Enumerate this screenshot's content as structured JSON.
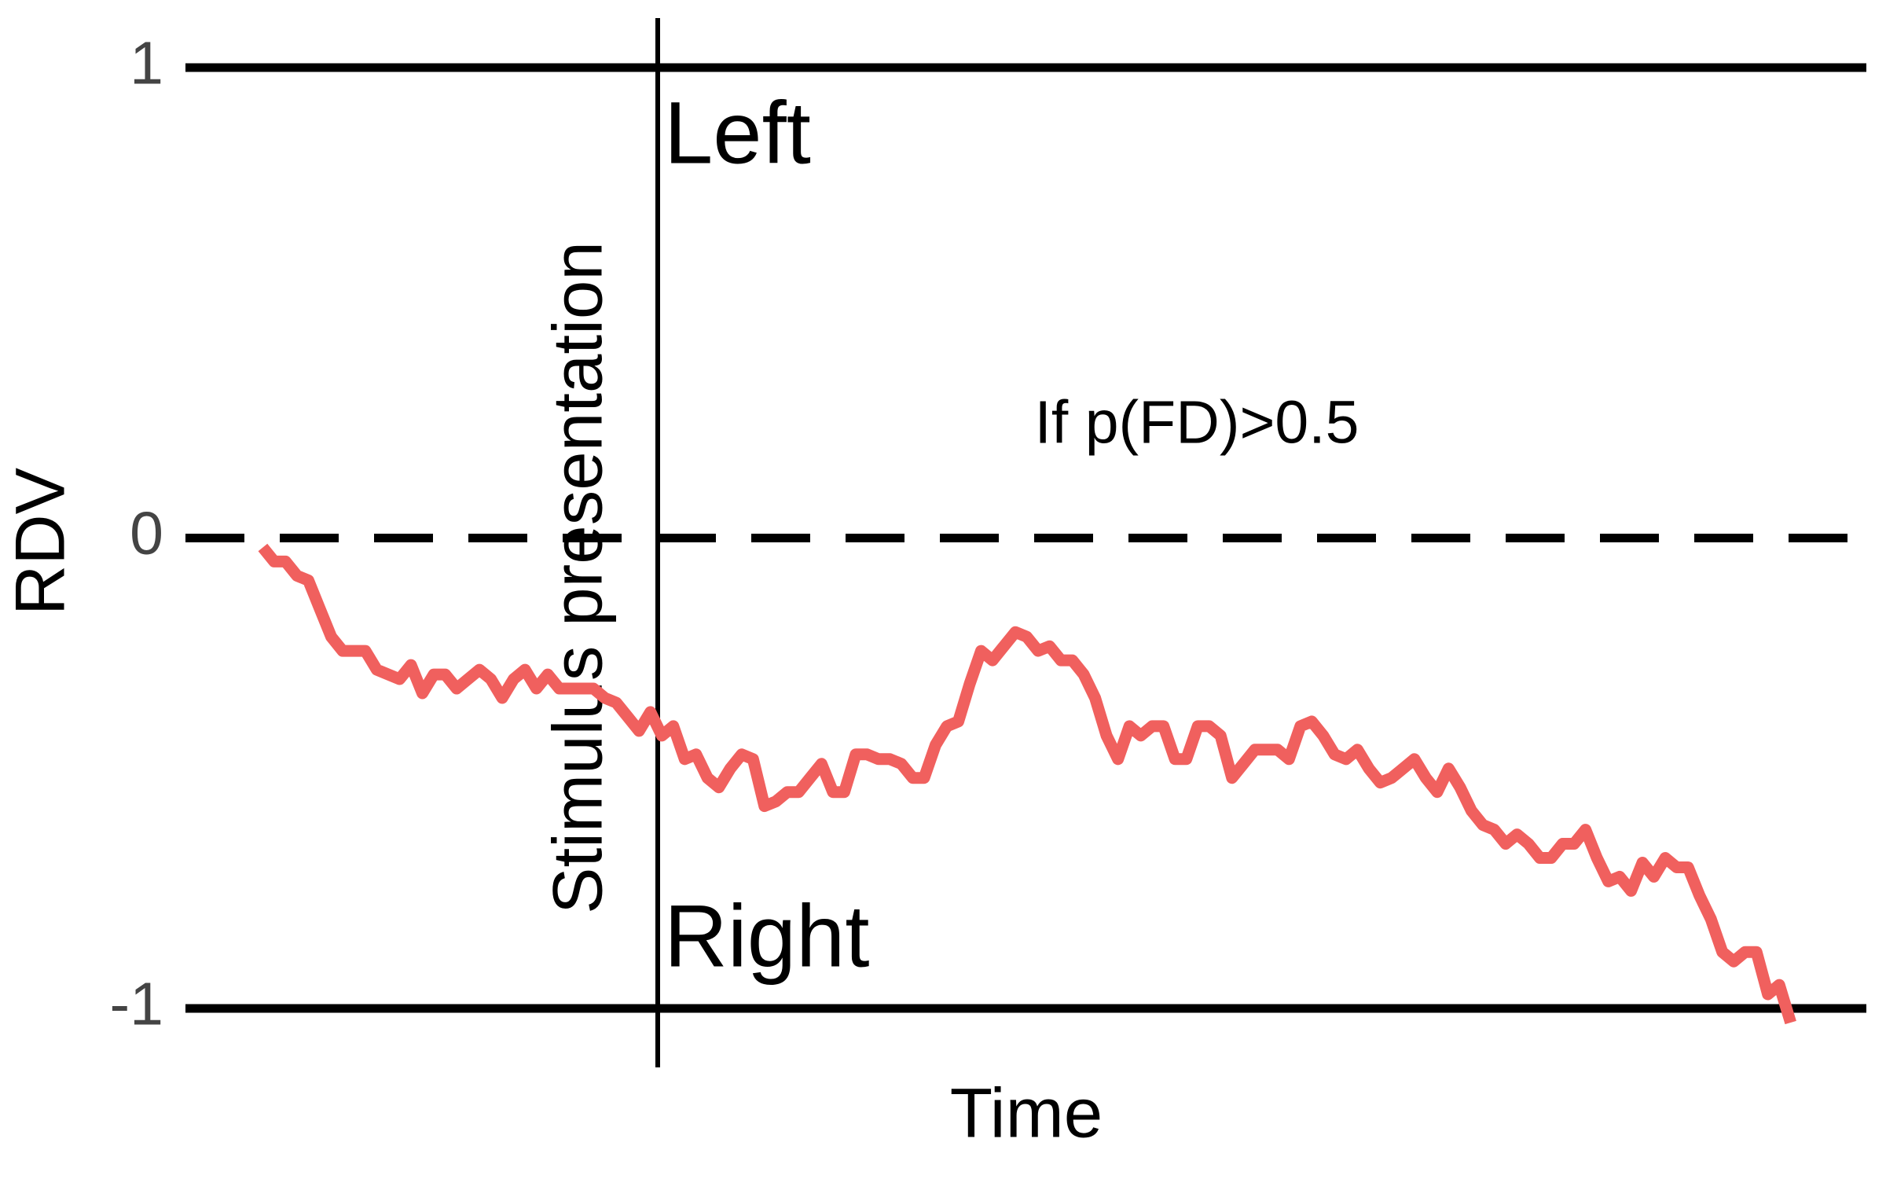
{
  "chart_data": {
    "type": "line",
    "x_label": "Time",
    "y_label": "RDV",
    "annotations": [
      "Left",
      "Right",
      "If p(FD)>0.5",
      "Stimulus presentation"
    ],
    "ylim": [
      -1,
      1
    ],
    "yticks": [
      1,
      0,
      -1
    ],
    "series": [
      {
        "color": "#f0605e",
        "values": [
          -0.02,
          -0.05,
          -0.05,
          -0.08,
          -0.09,
          -0.15,
          -0.21,
          -0.24,
          -0.24,
          -0.24,
          -0.28,
          -0.29,
          -0.3,
          -0.27,
          -0.33,
          -0.29,
          -0.29,
          -0.32,
          -0.3,
          -0.28,
          -0.3,
          -0.34,
          -0.3,
          -0.28,
          -0.32,
          -0.29,
          -0.32,
          -0.32,
          -0.32,
          -0.32,
          -0.34,
          -0.35,
          -0.38,
          -0.41,
          -0.37,
          -0.42,
          -0.4,
          -0.47,
          -0.46,
          -0.51,
          -0.53,
          -0.49,
          -0.46,
          -0.47,
          -0.57,
          -0.56,
          -0.54,
          -0.54,
          -0.51,
          -0.48,
          -0.54,
          -0.54,
          -0.46,
          -0.46,
          -0.47,
          -0.47,
          -0.48,
          -0.51,
          -0.51,
          -0.44,
          -0.4,
          -0.39,
          -0.31,
          -0.24,
          -0.26,
          -0.23,
          -0.2,
          -0.21,
          -0.24,
          -0.23,
          -0.26,
          -0.26,
          -0.29,
          -0.34,
          -0.42,
          -0.47,
          -0.4,
          -0.42,
          -0.4,
          -0.4,
          -0.47,
          -0.47,
          -0.4,
          -0.4,
          -0.42,
          -0.51,
          -0.48,
          -0.45,
          -0.45,
          -0.45,
          -0.47,
          -0.4,
          -0.39,
          -0.42,
          -0.46,
          -0.47,
          -0.45,
          -0.49,
          -0.52,
          -0.51,
          -0.49,
          -0.47,
          -0.51,
          -0.54,
          -0.49,
          -0.53,
          -0.58,
          -0.61,
          -0.62,
          -0.65,
          -0.63,
          -0.65,
          -0.68,
          -0.68,
          -0.65,
          -0.65,
          -0.62,
          -0.68,
          -0.73,
          -0.72,
          -0.75,
          -0.69,
          -0.72,
          -0.68,
          -0.7,
          -0.7,
          -0.76,
          -0.81,
          -0.88,
          -0.9,
          -0.88,
          -0.88,
          -0.97,
          -0.95,
          -1.03
        ]
      }
    ]
  }
}
